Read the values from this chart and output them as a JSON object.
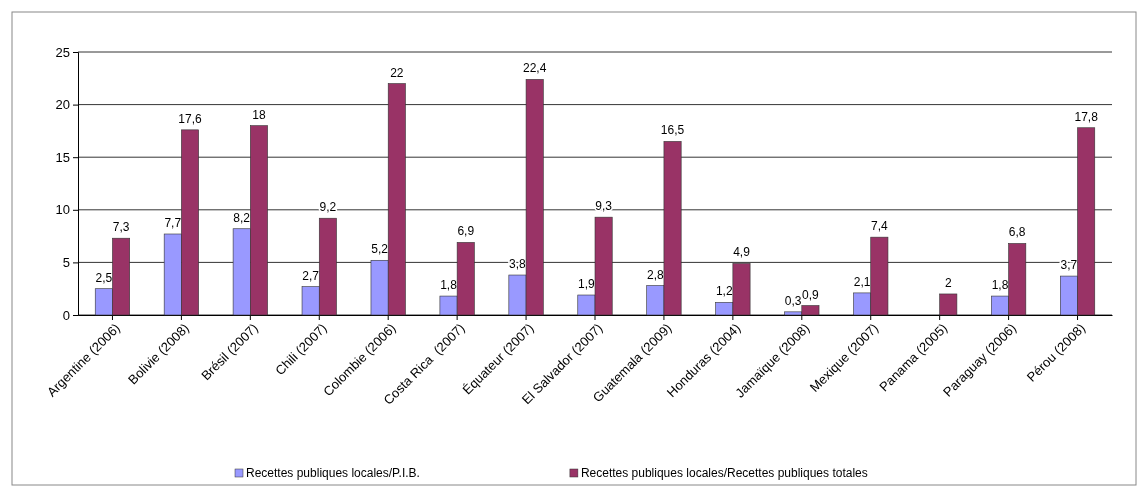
{
  "chart_data": {
    "type": "bar",
    "categories": [
      "Argentine (2006)",
      "Bolivie (2008)",
      "Brésil (2007)",
      "Chili (2007)",
      "Colombie (2006)",
      "Costa Rica  (2007)",
      "Équateur (2007)",
      "El Salvador (2007)",
      "Guatemala (2009)",
      "Honduras (2004)",
      "Jamaïque (2008)",
      "Mexique (2007)",
      "Panama (2005)",
      "Paraguay (2006)",
      "Pérou (2008)"
    ],
    "series": [
      {
        "name": "Recettes publiques locales/P.I.B.",
        "color": "#9999ff",
        "values": [
          2.5,
          7.7,
          8.2,
          2.7,
          5.2,
          1.8,
          3.8,
          1.9,
          2.8,
          1.2,
          0.3,
          2.1,
          null,
          1.8,
          3.7
        ],
        "value_labels": [
          "2,5",
          "7,7",
          "8,2",
          "2,7",
          "5,2",
          "1,8",
          "3,8",
          "1,9",
          "2,8",
          "1,2",
          "0,3",
          "2,1",
          null,
          "1,8",
          "3,7"
        ]
      },
      {
        "name": "Recettes publiques locales/Recettes publiques totales",
        "color": "#993366",
        "values": [
          7.3,
          17.6,
          18,
          9.2,
          22,
          6.9,
          22.4,
          9.3,
          16.5,
          4.9,
          0.9,
          7.4,
          2,
          6.8,
          17.8
        ],
        "value_labels": [
          "7,3",
          "17,6",
          "18",
          "9,2",
          "22",
          "6,9",
          "22,4",
          "9,3",
          "16,5",
          "4,9",
          "0,9",
          "7,4",
          "2",
          "6,8",
          "17,8"
        ]
      }
    ],
    "ylim": [
      0,
      25
    ],
    "yticks": [
      0,
      5,
      10,
      15,
      20,
      25
    ],
    "grid": "y",
    "legend": "bottom"
  }
}
